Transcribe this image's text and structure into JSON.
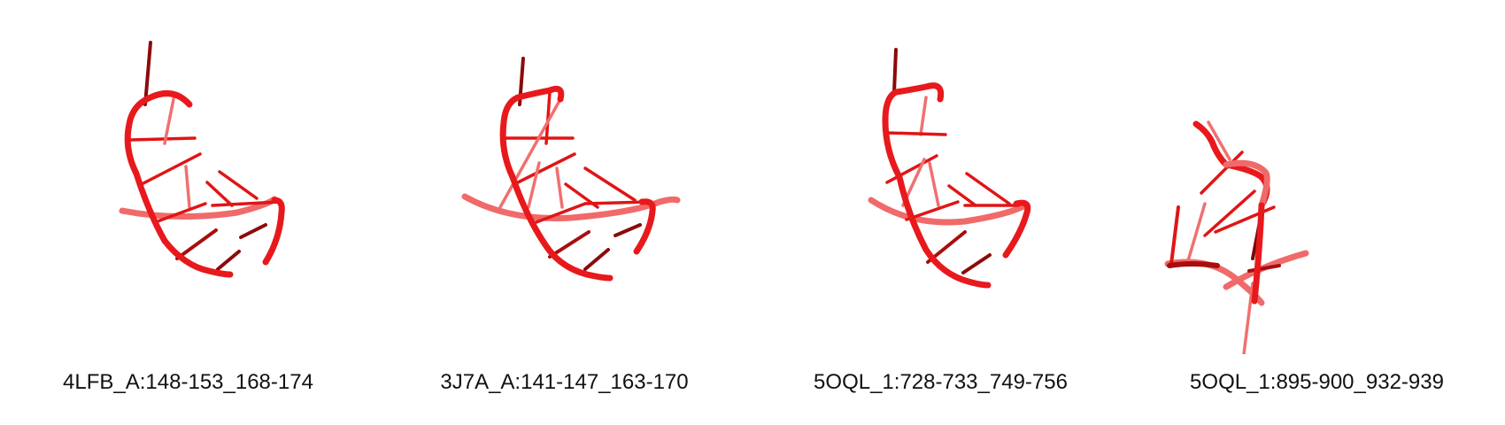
{
  "panels": [
    {
      "label": "4LFB_A:148-153_168-174"
    },
    {
      "label": "3J7A_A:141-147_163-170"
    },
    {
      "label": "5OQL_1:728-733_749-756"
    },
    {
      "label": "5OQL_1:895-900_932-939"
    }
  ],
  "colors": {
    "backbone": "#e8191c",
    "backbone_light": "#f06a6a",
    "backbone_dark": "#8b0a0a",
    "base": "#e01515",
    "base_light": "#f07070",
    "base_dark": "#7a0808"
  }
}
